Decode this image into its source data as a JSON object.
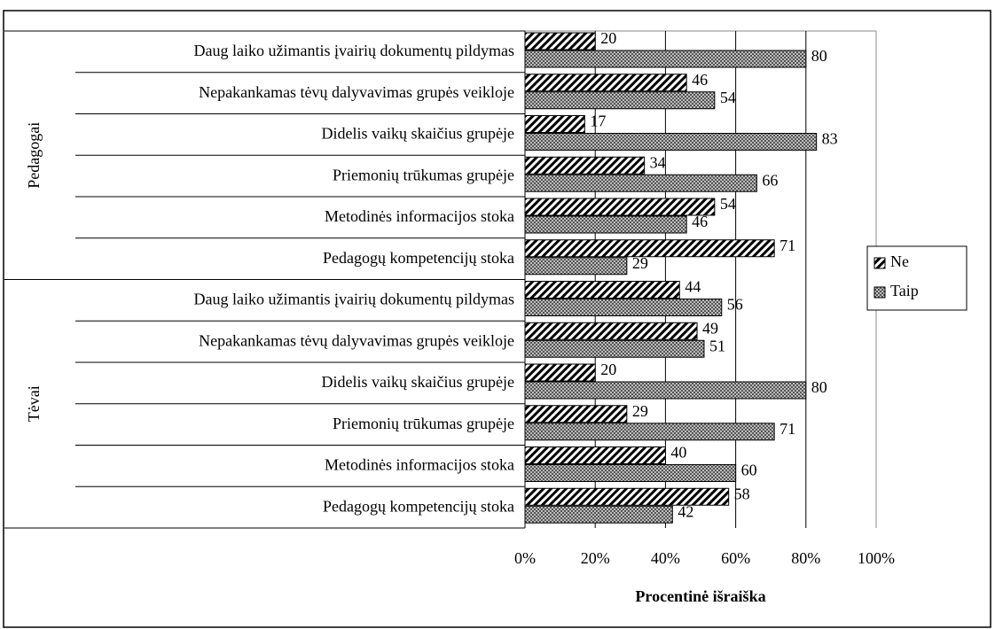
{
  "chart_data": {
    "type": "bar",
    "orientation": "horizontal",
    "x_label": "Procentinė išraiška",
    "groups": [
      {
        "label": "Pedagogai",
        "categories": [
          "Daug laiko užimantis įvairių dokumentų pildymas",
          "Nepakankamas tėvų dalyvavimas grupės veikloje",
          "Didelis vaikų skaičius grupėje",
          "Priemonių trūkumas grupėje",
          "Metodinės informacijos stoka",
          "Pedagogų kompetencijų stoka"
        ]
      },
      {
        "label": "Tėvai",
        "categories": [
          "Daug laiko užimantis įvairių dokumentų pildymas",
          "Nepakankamas tėvų dalyvavimas grupės veikloje",
          "Didelis vaikų skaičius grupėje",
          "Priemonių trūkumas grupėje",
          "Metodinės informacijos stoka",
          "Pedagogų kompetencijų stoka"
        ]
      }
    ],
    "series": [
      {
        "name": "Ne",
        "color": "#000000",
        "pattern": "diagonal",
        "values": [
          20,
          46,
          17,
          34,
          54,
          71,
          44,
          49,
          20,
          29,
          40,
          58
        ]
      },
      {
        "name": "Taip",
        "color": "#808080",
        "pattern": "crosshatch",
        "values": [
          80,
          54,
          83,
          66,
          46,
          29,
          56,
          51,
          80,
          71,
          60,
          42
        ]
      }
    ],
    "xlim": [
      0,
      100
    ],
    "xticks": [
      {
        "value": 0,
        "label": "0%"
      },
      {
        "value": 20,
        "label": "20%"
      },
      {
        "value": 40,
        "label": "40%"
      },
      {
        "value": 60,
        "label": "60%"
      },
      {
        "value": 80,
        "label": "80%"
      },
      {
        "value": 100,
        "label": "100%"
      }
    ],
    "grid": true,
    "legend": "right"
  }
}
